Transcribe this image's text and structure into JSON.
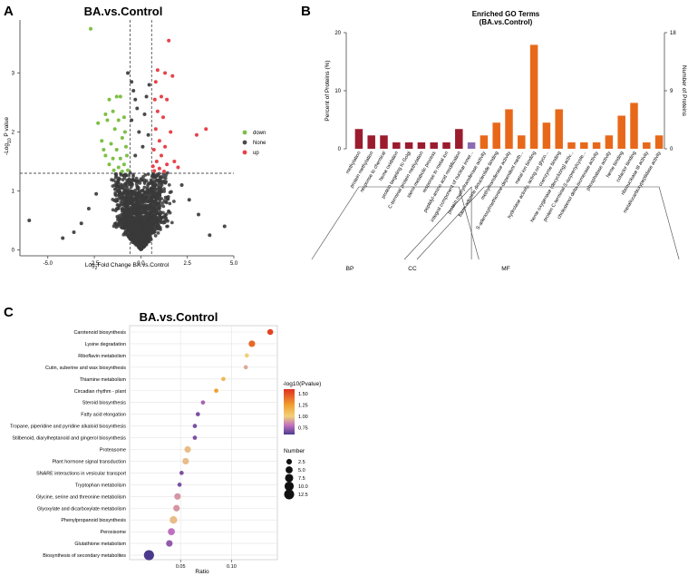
{
  "panels": {
    "A": {
      "letter": "A",
      "title": "BA.vs.Control",
      "xlabel_text": "Fold Change BA.vs.Control",
      "xlabel_prefix": "Log",
      "xlabel_sub": "2",
      "ylabel_prefix": "-Log",
      "ylabel_sub": "10",
      "ylabel_text": " P value",
      "xticks": [
        "-5.0",
        "-2.5",
        "0.0",
        "2.5",
        "5.0"
      ],
      "yticks": [
        "0",
        "1",
        "2",
        "3"
      ],
      "legend": [
        {
          "label": "down",
          "color": "#7cbf45"
        },
        {
          "label": "None",
          "color": "#4a4a4a"
        },
        {
          "label": "up",
          "color": "#e8424a"
        }
      ]
    },
    "B": {
      "letter": "B",
      "title_line1": "Enriched GO Terms",
      "title_line2": "(BA.vs.Control)",
      "ylabel_left": "Percent of Proteins (%)",
      "ylabel_right": "Number of Proteins",
      "left_ticks": [
        "0",
        "10",
        "20"
      ],
      "right_ticks": [
        "0",
        "9",
        "18"
      ],
      "groups": [
        "BP",
        "CC",
        "MF"
      ]
    },
    "C": {
      "letter": "C",
      "title": "BA.vs.Control",
      "xlabel": "Ratio",
      "xticks": [
        "0.05",
        "0.10"
      ],
      "color_legend_title": "-log10(Pvalue)",
      "color_ticks": [
        "1.50",
        "1.25",
        "1.00",
        "0.75"
      ],
      "size_legend_title": "Number",
      "size_ticks": [
        "2.5",
        "5.0",
        "7.5",
        "10.0",
        "12.5"
      ]
    }
  },
  "chart_data": [
    {
      "type": "scatter",
      "panel": "A",
      "title": "BA.vs.Control",
      "xlabel": "Log2 Fold Change BA.vs.Control",
      "ylabel": "-Log10 P value",
      "xlim": [
        -6.5,
        5
      ],
      "ylim": [
        -0.1,
        3.9
      ],
      "thresholds": {
        "x": [
          -0.58,
          0.58
        ],
        "y": 1.3
      },
      "series": [
        {
          "name": "down",
          "color": "#7cbf45",
          "points": [
            [
              -2.7,
              3.75
            ],
            [
              -1.7,
              2.55
            ],
            [
              -1.3,
              2.6
            ],
            [
              -1.9,
              2.3
            ],
            [
              -1.1,
              2.6
            ],
            [
              -1.5,
              2.35
            ],
            [
              -2.3,
              2.15
            ],
            [
              -1.8,
              2.2
            ],
            [
              -1.2,
              2.2
            ],
            [
              -1.4,
              2.05
            ],
            [
              -0.9,
              2.25
            ],
            [
              -2.1,
              1.85
            ],
            [
              -1.6,
              1.8
            ],
            [
              -1.0,
              1.9
            ],
            [
              -1.3,
              1.7
            ],
            [
              -0.8,
              1.75
            ],
            [
              -1.9,
              1.6
            ],
            [
              -1.5,
              1.55
            ],
            [
              -1.1,
              1.55
            ],
            [
              -0.75,
              1.6
            ],
            [
              -1.7,
              1.45
            ],
            [
              -1.2,
              1.4
            ],
            [
              -0.9,
              1.45
            ],
            [
              -1.45,
              1.35
            ],
            [
              -0.7,
              1.35
            ],
            [
              -1.0,
              1.33
            ],
            [
              -2.0,
              1.7
            ],
            [
              -0.85,
              2.0
            ]
          ]
        },
        {
          "name": "None",
          "color": "#4a4a4a",
          "points": [
            [
              -6.0,
              0.5
            ],
            [
              -0.7,
              3.0
            ],
            [
              -0.5,
              2.85
            ],
            [
              -0.4,
              2.7
            ],
            [
              -0.3,
              2.55
            ],
            [
              -0.2,
              2.4
            ],
            [
              -0.5,
              2.2
            ],
            [
              0.3,
              2.6
            ],
            [
              0.45,
              2.8
            ],
            [
              0.2,
              2.3
            ],
            [
              -0.1,
              2.0
            ],
            [
              0.4,
              1.95
            ],
            [
              0.1,
              1.75
            ],
            [
              -0.3,
              1.6
            ],
            [
              4.5,
              0.4
            ],
            [
              3.1,
              0.6
            ],
            [
              -3.2,
              0.45
            ],
            [
              -2.8,
              0.7
            ],
            [
              2.6,
              0.85
            ],
            [
              -2.4,
              0.95
            ],
            [
              2.2,
              1.1
            ],
            [
              -3.6,
              0.3
            ],
            [
              3.7,
              0.25
            ],
            [
              -4.2,
              0.2
            ]
          ]
        },
        {
          "name": "up",
          "color": "#e8424a",
          "points": [
            [
              1.5,
              3.55
            ],
            [
              0.9,
              3.05
            ],
            [
              1.3,
              3.0
            ],
            [
              0.8,
              2.85
            ],
            [
              1.7,
              2.95
            ],
            [
              0.75,
              2.55
            ],
            [
              1.1,
              2.6
            ],
            [
              1.4,
              2.55
            ],
            [
              0.9,
              2.35
            ],
            [
              1.2,
              2.25
            ],
            [
              3.5,
              2.05
            ],
            [
              3.0,
              1.95
            ],
            [
              1.6,
              2.0
            ],
            [
              0.8,
              2.05
            ],
            [
              1.0,
              1.85
            ],
            [
              1.3,
              1.75
            ],
            [
              0.7,
              1.7
            ],
            [
              1.1,
              1.6
            ],
            [
              0.85,
              1.5
            ],
            [
              1.4,
              1.45
            ],
            [
              0.65,
              1.42
            ],
            [
              1.0,
              1.38
            ],
            [
              1.8,
              1.5
            ],
            [
              0.72,
              1.34
            ],
            [
              1.25,
              1.33
            ],
            [
              2.0,
              1.4
            ]
          ]
        }
      ]
    },
    {
      "type": "bar",
      "panel": "B",
      "title": "Enriched GO Terms (BA.vs.Control)",
      "ylabel": "Percent of Proteins (%)",
      "ylabel_right": "Number of Proteins",
      "ylim": [
        0,
        20
      ],
      "ylim_right": [
        0,
        18
      ],
      "categories": [
        "methylation",
        "protein methylation",
        "response to chemical",
        "heme oxidation",
        "protein targeting to Golgi",
        "C-terminal protein methylation",
        "sterol metabolic process",
        "response to metal ion",
        "peptidyl-amino acid modification",
        "integral component of nuclear inner...",
        "protein methyltransferase activity",
        "flavin adenine dinucleotide binding",
        "methyltransferase activity",
        "S-adenosylmethionine-dependent meth...",
        "metal ion binding",
        "hydrolase activity, acting on glyco...",
        "coenzyme binding",
        "heme oxygenase (decyclizing) activ...",
        "protein C-terminal S-isoprenylcyste...",
        "cholestenol delta-isomerase activity",
        "phosphatase activity",
        "heme binding",
        "cofactor binding",
        "ribonuclease III activity",
        "metallocarboxypeptidase activity"
      ],
      "group": [
        "BP",
        "BP",
        "BP",
        "BP",
        "BP",
        "BP",
        "BP",
        "BP",
        "BP",
        "CC",
        "MF",
        "MF",
        "MF",
        "MF",
        "MF",
        "MF",
        "MF",
        "MF",
        "MF",
        "MF",
        "MF",
        "MF",
        "MF",
        "MF",
        "MF"
      ],
      "values": [
        3.4,
        2.3,
        2.3,
        1.1,
        1.1,
        1.1,
        1.1,
        1.1,
        3.4,
        1.1,
        2.3,
        4.5,
        6.8,
        2.3,
        17.9,
        4.5,
        6.8,
        1.1,
        1.1,
        1.1,
        2.3,
        5.7,
        7.9,
        1.1,
        2.3
      ],
      "colors": {
        "BP": "#9b1c2e",
        "CC": "#8e6bb5",
        "MF": "#e8681a"
      }
    },
    {
      "type": "scatter",
      "panel": "C",
      "title": "BA.vs.Control",
      "xlabel": "Ratio",
      "xlim": [
        0.0,
        0.145
      ],
      "color_scale": {
        "name": "-log10(Pvalue)",
        "min": 0.6,
        "max": 1.6,
        "low": "#4b3a8c",
        "mid": "#f2d07a",
        "high": "#e03020"
      },
      "categories": [
        "Carotenoid biosynthesis",
        "Lysine degradation",
        "Riboflavin metabolism",
        "Cutin, suberine and wax biosynthesis",
        "Thiamine metabolism",
        "Circadian rhythm - plant",
        "Steroid biosynthesis",
        "Fatty acid elongation",
        "Tropane, piperidine and pyridine alkaloid biosynthesis",
        "Stilbenoid, diarylheptanoid and gingerol biosynthesis",
        "Proteasome",
        "Plant hormone signal transduction",
        "SNARE interactions in vesicular transport",
        "Tryptophan metabolism",
        "Glycine, serine and threonine metabolism",
        "Glyoxylate and dicarboxylate metabolism",
        "Phenylpropanoid biosynthesis",
        "Peroxisome",
        "Glutathione metabolism",
        "Biosynthesis of secondary metabolites"
      ],
      "ratio": [
        0.138,
        0.12,
        0.115,
        0.114,
        0.092,
        0.085,
        0.072,
        0.067,
        0.064,
        0.064,
        0.057,
        0.055,
        0.051,
        0.049,
        0.047,
        0.046,
        0.043,
        0.041,
        0.039,
        0.019
      ],
      "neg_log10_p": [
        1.55,
        1.45,
        1.1,
        1.0,
        1.2,
        1.3,
        0.8,
        0.7,
        0.7,
        0.7,
        1.05,
        1.05,
        0.7,
        0.7,
        0.95,
        0.95,
        1.05,
        0.85,
        0.75,
        0.6
      ],
      "number": [
        3,
        4,
        1,
        1,
        1,
        1,
        1,
        1,
        1,
        1,
        4,
        4,
        1,
        1,
        4,
        4,
        6,
        5,
        4,
        13
      ]
    }
  ]
}
